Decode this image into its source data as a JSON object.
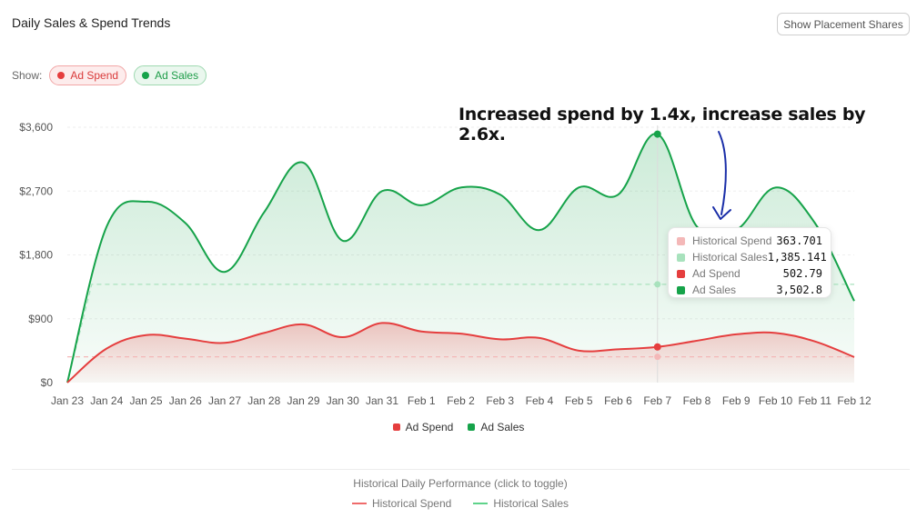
{
  "header": {
    "title": "Daily Sales & Spend Trends",
    "placement_button": "Show Placement Shares"
  },
  "filters": {
    "show_label": "Show:",
    "ad_spend": "Ad Spend",
    "ad_sales": "Ad Sales"
  },
  "annotation": "Increased spend by 1.4x, increase sales by 2.6x.",
  "tooltip": {
    "date": "Feb 7",
    "rows": [
      {
        "label": "Historical Spend",
        "value": "363.701",
        "color": "#f4b8b8"
      },
      {
        "label": "Historical Sales",
        "value": "1,385.141",
        "color": "#a8e2bd"
      },
      {
        "label": "Ad Spend",
        "value": "502.79",
        "color": "#e53e3e"
      },
      {
        "label": "Ad Sales",
        "value": "3,502.8",
        "color": "#16a34a"
      }
    ]
  },
  "legend": {
    "ad_spend": "Ad Spend",
    "ad_sales": "Ad Sales"
  },
  "historical": {
    "title": "Historical Daily Performance (click to toggle)",
    "spend": "Historical Spend",
    "sales": "Historical Sales"
  },
  "colors": {
    "spend": "#e53e3e",
    "sales": "#16a34a",
    "hist_spend": "#f4b8b8",
    "hist_sales": "#a8e2bd"
  },
  "chart_data": {
    "type": "area",
    "title": "Daily Sales & Spend Trends",
    "categories": [
      "Jan 23",
      "Jan 24",
      "Jan 25",
      "Jan 26",
      "Jan 27",
      "Jan 28",
      "Jan 29",
      "Jan 30",
      "Jan 31",
      "Feb 1",
      "Feb 2",
      "Feb 3",
      "Feb 4",
      "Feb 5",
      "Feb 6",
      "Feb 7",
      "Feb 8",
      "Feb 9",
      "Feb 10",
      "Feb 11",
      "Feb 12"
    ],
    "ylim": [
      0,
      3600
    ],
    "yticks": [
      0,
      900,
      1800,
      2700,
      3600
    ],
    "ytick_labels": [
      "$0",
      "$900",
      "$1,800",
      "$2,700",
      "$3,600"
    ],
    "series": [
      {
        "name": "Ad Sales",
        "values": [
          0,
          2200,
          2550,
          2250,
          1560,
          2400,
          3100,
          2000,
          2700,
          2500,
          2750,
          2650,
          2150,
          2750,
          2650,
          3502.8,
          2200,
          2150,
          2750,
          2250,
          1150
        ]
      },
      {
        "name": "Ad Spend",
        "values": [
          0,
          480,
          670,
          620,
          560,
          700,
          820,
          640,
          840,
          720,
          690,
          610,
          630,
          450,
          470,
          502.79,
          590,
          680,
          700,
          580,
          360
        ]
      },
      {
        "name": "Historical Sales",
        "values": [
          0,
          1385.141,
          1385.141,
          1385.141,
          1385.141,
          1385.141,
          1385.141,
          1385.141,
          1385.141,
          1385.141,
          1385.141,
          1385.141,
          1385.141,
          1385.141,
          1385.141,
          1385.141,
          1385.141,
          1385.141,
          1385.141,
          1385.141,
          1385.141
        ]
      },
      {
        "name": "Historical Spend",
        "values": [
          363.701,
          363.701,
          363.701,
          363.701,
          363.701,
          363.701,
          363.701,
          363.701,
          363.701,
          363.701,
          363.701,
          363.701,
          363.701,
          363.701,
          363.701,
          363.701,
          363.701,
          363.701,
          363.701,
          363.701,
          363.701
        ]
      }
    ],
    "highlight_category": "Feb 7",
    "grid": true,
    "legend": "bottom"
  }
}
